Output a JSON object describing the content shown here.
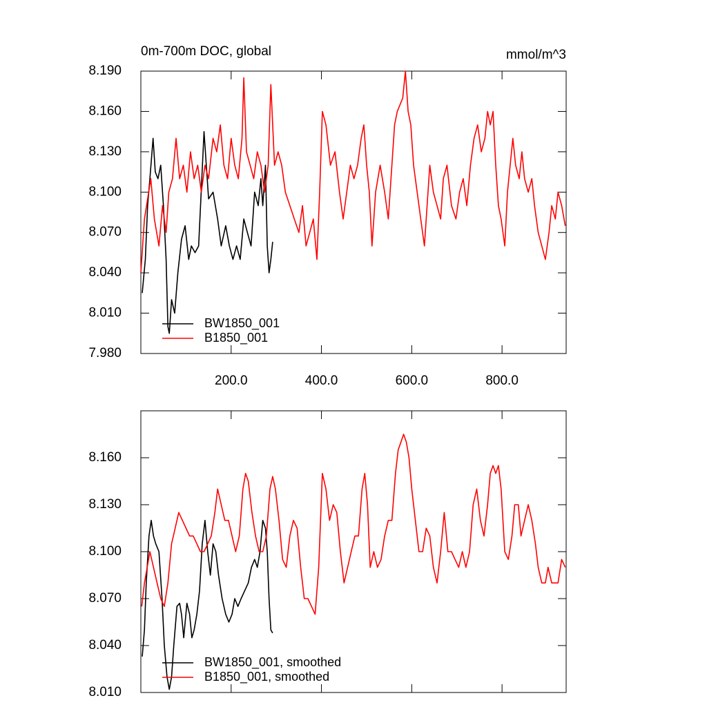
{
  "chart_data": [
    {
      "type": "line",
      "title": "0m-700m DOC, global",
      "units": "mmol/m^3",
      "xlim": [
        0,
        942
      ],
      "ylim": [
        7.98,
        8.19
      ],
      "xticks": [
        {
          "value": 200,
          "label": "200.0"
        },
        {
          "value": 400,
          "label": "400.0"
        },
        {
          "value": 600,
          "label": "600.0"
        },
        {
          "value": 800,
          "label": "800.0"
        }
      ],
      "yticks": [
        {
          "value": 7.98,
          "label": "7.980"
        },
        {
          "value": 8.01,
          "label": "8.010"
        },
        {
          "value": 8.04,
          "label": "8.040"
        },
        {
          "value": 8.07,
          "label": "8.070"
        },
        {
          "value": 8.1,
          "label": "8.100"
        },
        {
          "value": 8.13,
          "label": "8.130"
        },
        {
          "value": 8.16,
          "label": "8.160"
        },
        {
          "value": 8.19,
          "label": "8.190"
        }
      ],
      "legend": "lower left",
      "series": [
        {
          "name": "BW1850_001",
          "color": "#000000",
          "x": [
            3,
            10,
            15,
            20,
            27,
            32,
            38,
            44,
            50,
            56,
            60,
            63,
            68,
            75,
            82,
            90,
            98,
            106,
            112,
            120,
            128,
            135,
            140,
            145,
            150,
            160,
            170,
            178,
            188,
            196,
            204,
            212,
            220,
            228,
            236,
            244,
            252,
            260,
            266,
            270,
            276,
            280,
            284,
            288,
            292
          ],
          "values": [
            8.025,
            8.05,
            8.09,
            8.11,
            8.14,
            8.115,
            8.11,
            8.12,
            8.09,
            8.05,
            8.0,
            7.995,
            8.02,
            8.01,
            8.04,
            8.065,
            8.075,
            8.05,
            8.06,
            8.055,
            8.06,
            8.11,
            8.145,
            8.12,
            8.095,
            8.1,
            8.08,
            8.06,
            8.075,
            8.06,
            8.05,
            8.06,
            8.05,
            8.08,
            8.07,
            8.06,
            8.1,
            8.09,
            8.11,
            8.09,
            8.12,
            8.06,
            8.04,
            8.05,
            8.063
          ]
        },
        {
          "name": "B1850_001",
          "color": "#ff0000",
          "x": [
            0,
            8,
            15,
            22,
            30,
            40,
            48,
            56,
            62,
            70,
            78,
            86,
            94,
            102,
            110,
            118,
            126,
            134,
            142,
            150,
            160,
            168,
            176,
            184,
            192,
            200,
            208,
            216,
            224,
            228,
            234,
            242,
            250,
            258,
            266,
            274,
            282,
            288,
            296,
            304,
            312,
            320,
            330,
            340,
            350,
            358,
            366,
            374,
            382,
            390,
            396,
            402,
            410,
            420,
            430,
            440,
            448,
            456,
            464,
            472,
            480,
            488,
            494,
            500,
            506,
            512,
            520,
            530,
            540,
            548,
            556,
            562,
            568,
            574,
            580,
            586,
            592,
            598,
            604,
            612,
            620,
            628,
            634,
            640,
            648,
            656,
            664,
            670,
            678,
            688,
            698,
            706,
            714,
            722,
            730,
            738,
            746,
            754,
            762,
            768,
            774,
            780,
            786,
            792,
            798,
            806,
            812,
            818,
            824,
            830,
            838,
            844,
            850,
            858,
            866,
            872,
            880,
            888,
            896,
            904,
            910,
            918,
            924,
            932,
            940
          ],
          "values": [
            8.04,
            8.08,
            8.095,
            8.11,
            8.08,
            8.06,
            8.09,
            8.07,
            8.1,
            8.11,
            8.14,
            8.11,
            8.12,
            8.1,
            8.13,
            8.11,
            8.12,
            8.1,
            8.12,
            8.11,
            8.14,
            8.13,
            8.15,
            8.12,
            8.11,
            8.14,
            8.12,
            8.11,
            8.14,
            8.185,
            8.13,
            8.12,
            8.11,
            8.13,
            8.12,
            8.1,
            8.12,
            8.18,
            8.12,
            8.13,
            8.12,
            8.1,
            8.09,
            8.08,
            8.07,
            8.09,
            8.06,
            8.07,
            8.08,
            8.05,
            8.1,
            8.16,
            8.15,
            8.12,
            8.13,
            8.1,
            8.08,
            8.1,
            8.12,
            8.11,
            8.12,
            8.14,
            8.15,
            8.12,
            8.1,
            8.06,
            8.1,
            8.12,
            8.1,
            8.08,
            8.12,
            8.15,
            8.16,
            8.165,
            8.17,
            8.19,
            8.16,
            8.15,
            8.12,
            8.1,
            8.08,
            8.06,
            8.09,
            8.12,
            8.1,
            8.09,
            8.08,
            8.11,
            8.12,
            8.09,
            8.08,
            8.1,
            8.11,
            8.09,
            8.12,
            8.14,
            8.15,
            8.13,
            8.14,
            8.16,
            8.15,
            8.16,
            8.12,
            8.09,
            8.08,
            8.06,
            8.1,
            8.12,
            8.14,
            8.12,
            8.11,
            8.13,
            8.11,
            8.1,
            8.11,
            8.09,
            8.07,
            8.06,
            8.05,
            8.07,
            8.09,
            8.08,
            8.1,
            8.09,
            8.075
          ]
        }
      ]
    },
    {
      "type": "line",
      "xlim": [
        0,
        942
      ],
      "ylim": [
        8.01,
        8.19
      ],
      "yticks": [
        {
          "value": 8.01,
          "label": "8.010"
        },
        {
          "value": 8.04,
          "label": "8.040"
        },
        {
          "value": 8.07,
          "label": "8.070"
        },
        {
          "value": 8.1,
          "label": "8.100"
        },
        {
          "value": 8.13,
          "label": "8.130"
        },
        {
          "value": 8.16,
          "label": "8.160"
        }
      ],
      "legend": "lower left",
      "series": [
        {
          "name": "BW1850_001, smoothed",
          "color": "#000000",
          "x": [
            3,
            8,
            12,
            18,
            23,
            28,
            33,
            40,
            47,
            52,
            58,
            63,
            68,
            73,
            80,
            86,
            90,
            95,
            102,
            108,
            113,
            118,
            124,
            130,
            136,
            142,
            148,
            154,
            160,
            166,
            172,
            180,
            188,
            195,
            202,
            208,
            215,
            222,
            230,
            238,
            245,
            252,
            258,
            264,
            270,
            276,
            280,
            284,
            288,
            292
          ],
          "values": [
            8.033,
            8.05,
            8.08,
            8.11,
            8.12,
            8.11,
            8.105,
            8.1,
            8.07,
            8.04,
            8.02,
            8.012,
            8.02,
            8.04,
            8.065,
            8.067,
            8.06,
            8.045,
            8.067,
            8.06,
            8.045,
            8.05,
            8.06,
            8.075,
            8.105,
            8.12,
            8.1,
            8.085,
            8.105,
            8.1,
            8.085,
            8.07,
            8.06,
            8.055,
            8.06,
            8.07,
            8.065,
            8.07,
            8.075,
            8.08,
            8.09,
            8.095,
            8.09,
            8.1,
            8.12,
            8.115,
            8.1,
            8.07,
            8.05,
            8.048
          ]
        },
        {
          "name": "B1850_001, smoothed",
          "color": "#ff0000",
          "x": [
            2,
            8,
            14,
            20,
            28,
            36,
            44,
            52,
            60,
            68,
            76,
            84,
            92,
            100,
            108,
            116,
            124,
            132,
            140,
            148,
            156,
            164,
            170,
            178,
            186,
            194,
            202,
            210,
            218,
            226,
            232,
            238,
            246,
            254,
            262,
            270,
            278,
            286,
            292,
            298,
            306,
            314,
            322,
            330,
            338,
            346,
            354,
            362,
            370,
            378,
            386,
            394,
            402,
            410,
            418,
            426,
            434,
            442,
            450,
            458,
            466,
            474,
            482,
            490,
            496,
            502,
            508,
            516,
            524,
            532,
            540,
            548,
            556,
            564,
            570,
            576,
            582,
            588,
            594,
            600,
            608,
            616,
            624,
            632,
            640,
            648,
            656,
            664,
            672,
            680,
            688,
            696,
            704,
            712,
            720,
            728,
            736,
            744,
            752,
            760,
            768,
            774,
            780,
            786,
            792,
            798,
            806,
            814,
            822,
            828,
            836,
            842,
            850,
            858,
            866,
            874,
            880,
            888,
            896,
            902,
            910,
            918,
            924,
            932,
            940
          ],
          "values": [
            8.065,
            8.08,
            8.09,
            8.1,
            8.09,
            8.08,
            8.07,
            8.065,
            8.08,
            8.105,
            8.115,
            8.125,
            8.12,
            8.115,
            8.11,
            8.11,
            8.105,
            8.1,
            8.1,
            8.105,
            8.11,
            8.125,
            8.14,
            8.13,
            8.12,
            8.12,
            8.11,
            8.1,
            8.11,
            8.14,
            8.15,
            8.145,
            8.125,
            8.11,
            8.1,
            8.1,
            8.11,
            8.14,
            8.148,
            8.14,
            8.12,
            8.095,
            8.09,
            8.11,
            8.12,
            8.115,
            8.09,
            8.07,
            8.07,
            8.065,
            8.06,
            8.09,
            8.15,
            8.14,
            8.12,
            8.13,
            8.125,
            8.1,
            8.08,
            8.09,
            8.1,
            8.11,
            8.11,
            8.14,
            8.15,
            8.13,
            8.09,
            8.1,
            8.09,
            8.095,
            8.11,
            8.12,
            8.12,
            8.15,
            8.165,
            8.17,
            8.175,
            8.17,
            8.16,
            8.14,
            8.12,
            8.1,
            8.1,
            8.115,
            8.11,
            8.09,
            8.08,
            8.1,
            8.125,
            8.1,
            8.1,
            8.095,
            8.09,
            8.1,
            8.09,
            8.1,
            8.13,
            8.14,
            8.12,
            8.11,
            8.13,
            8.15,
            8.155,
            8.15,
            8.155,
            8.14,
            8.1,
            8.095,
            8.11,
            8.13,
            8.13,
            8.11,
            8.12,
            8.13,
            8.12,
            8.105,
            8.09,
            8.08,
            8.08,
            8.09,
            8.08,
            8.08,
            8.08,
            8.095,
            8.09
          ]
        }
      ]
    }
  ]
}
